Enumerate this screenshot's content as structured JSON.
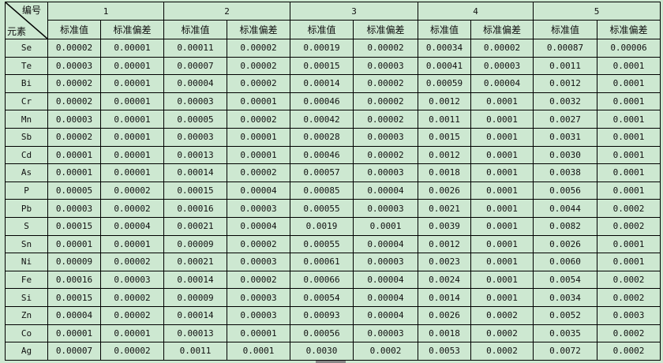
{
  "corner": {
    "top_label": "编号",
    "bottom_label": "元素"
  },
  "groups": [
    "1",
    "2",
    "3",
    "4",
    "5"
  ],
  "sub_headers": {
    "value": "标准值",
    "deviation": "标准偏差"
  },
  "rows": [
    {
      "element": "Se",
      "values": [
        "0.00002",
        "0.00001",
        "0.00011",
        "0.00002",
        "0.00019",
        "0.00002",
        "0.00034",
        "0.00002",
        "0.00087",
        "0.00006"
      ]
    },
    {
      "element": "Te",
      "values": [
        "0.00003",
        "0.00001",
        "0.00007",
        "0.00002",
        "0.00015",
        "0.00003",
        "0.00041",
        "0.00003",
        "0.0011",
        "0.0001"
      ]
    },
    {
      "element": "Bi",
      "values": [
        "0.00002",
        "0.00001",
        "0.00004",
        "0.00002",
        "0.00014",
        "0.00002",
        "0.00059",
        "0.00004",
        "0.0012",
        "0.0001"
      ]
    },
    {
      "element": "Cr",
      "values": [
        "0.00002",
        "0.00001",
        "0.00003",
        "0.00001",
        "0.00046",
        "0.00002",
        "0.0012",
        "0.0001",
        "0.0032",
        "0.0001"
      ]
    },
    {
      "element": "Mn",
      "values": [
        "0.00003",
        "0.00001",
        "0.00005",
        "0.00002",
        "0.00042",
        "0.00002",
        "0.0011",
        "0.0001",
        "0.0027",
        "0.0001"
      ]
    },
    {
      "element": "Sb",
      "values": [
        "0.00002",
        "0.00001",
        "0.00003",
        "0.00001",
        "0.00028",
        "0.00003",
        "0.0015",
        "0.0001",
        "0.0031",
        "0.0001"
      ]
    },
    {
      "element": "Cd",
      "values": [
        "0.00001",
        "0.00001",
        "0.00013",
        "0.00001",
        "0.00046",
        "0.00002",
        "0.0012",
        "0.0001",
        "0.0030",
        "0.0001"
      ]
    },
    {
      "element": "As",
      "values": [
        "0.00001",
        "0.00001",
        "0.00014",
        "0.00002",
        "0.00057",
        "0.00003",
        "0.0018",
        "0.0001",
        "0.0038",
        "0.0001"
      ]
    },
    {
      "element": "P",
      "values": [
        "0.00005",
        "0.00002",
        "0.00015",
        "0.00004",
        "0.00085",
        "0.00004",
        "0.0026",
        "0.0001",
        "0.0056",
        "0.0001"
      ]
    },
    {
      "element": "Pb",
      "values": [
        "0.00003",
        "0.00002",
        "0.00016",
        "0.00003",
        "0.00055",
        "0.00003",
        "0.0021",
        "0.0001",
        "0.0044",
        "0.0002"
      ]
    },
    {
      "element": "S",
      "values": [
        "0.00015",
        "0.00004",
        "0.00021",
        "0.00004",
        "0.0019",
        "0.0001",
        "0.0039",
        "0.0001",
        "0.0082",
        "0.0002"
      ]
    },
    {
      "element": "Sn",
      "values": [
        "0.00001",
        "0.00001",
        "0.00009",
        "0.00002",
        "0.00055",
        "0.00004",
        "0.0012",
        "0.0001",
        "0.0026",
        "0.0001"
      ]
    },
    {
      "element": "Ni",
      "values": [
        "0.00009",
        "0.00002",
        "0.00021",
        "0.00003",
        "0.00061",
        "0.00003",
        "0.0023",
        "0.0001",
        "0.0060",
        "0.0001"
      ]
    },
    {
      "element": "Fe",
      "values": [
        "0.00016",
        "0.00003",
        "0.00014",
        "0.00002",
        "0.00066",
        "0.00004",
        "0.0024",
        "0.0001",
        "0.0054",
        "0.0002"
      ]
    },
    {
      "element": "Si",
      "values": [
        "0.00015",
        "0.00002",
        "0.00009",
        "0.00003",
        "0.00054",
        "0.00004",
        "0.0014",
        "0.0001",
        "0.0034",
        "0.0002"
      ]
    },
    {
      "element": "Zn",
      "values": [
        "0.00004",
        "0.00002",
        "0.00014",
        "0.00003",
        "0.00093",
        "0.00004",
        "0.0026",
        "0.0002",
        "0.0052",
        "0.0003"
      ]
    },
    {
      "element": "Co",
      "values": [
        "0.00001",
        "0.00001",
        "0.00013",
        "0.00001",
        "0.00056",
        "0.00003",
        "0.0018",
        "0.0002",
        "0.0035",
        "0.0002"
      ]
    },
    {
      "element": "Ag",
      "values": [
        "0.00007",
        "0.00002",
        "0.0011",
        "0.0001",
        "0.0030",
        "0.0002",
        "0.0053",
        "0.0002",
        "0.0072",
        "0.0002"
      ]
    }
  ]
}
